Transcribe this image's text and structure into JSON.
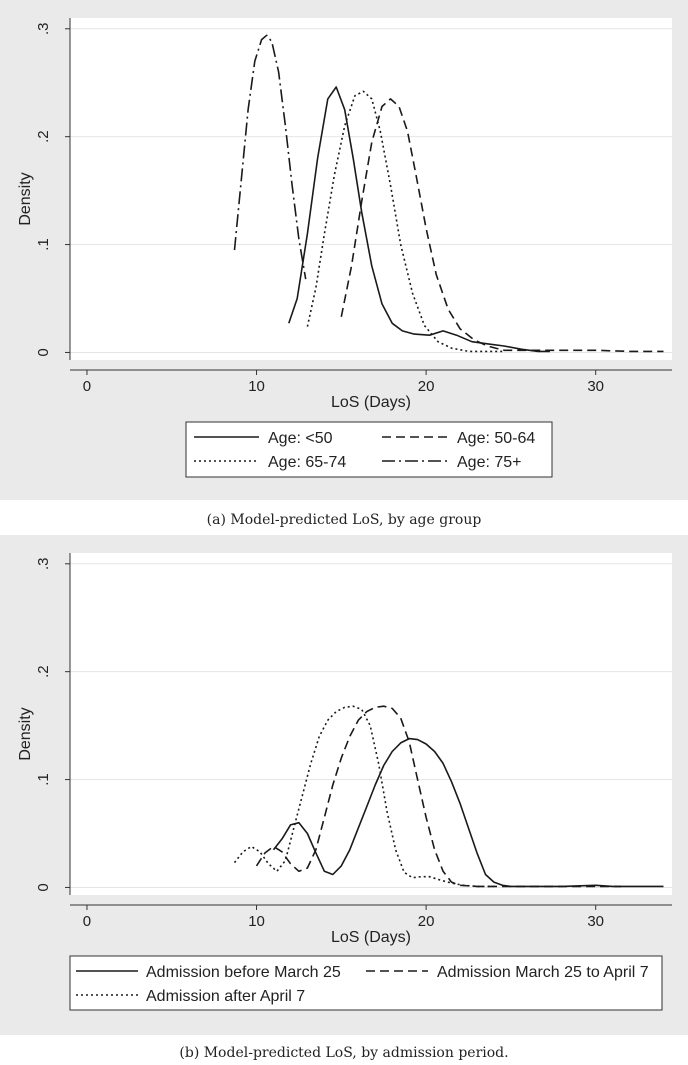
{
  "chart_data": [
    {
      "type": "line",
      "caption": "(a) Model-predicted LoS, by age group",
      "xlabel": "LoS (Days)",
      "ylabel": "Density",
      "xlim": [
        -1,
        34.5
      ],
      "ylim": [
        -0.007,
        0.31
      ],
      "xticks": [
        0,
        10,
        20,
        30
      ],
      "yticks": [
        0,
        0.1,
        0.2,
        0.3
      ],
      "xtick_labels": [
        "0",
        "10",
        "20",
        "30"
      ],
      "ytick_labels": [
        "0",
        ".1",
        ".2",
        ".3"
      ],
      "grid": true,
      "legend_position": "bottom",
      "series": [
        {
          "name": "Age: <50",
          "style": "solid",
          "x": [
            11.9,
            12.4,
            13.0,
            13.6,
            14.2,
            14.7,
            15.2,
            15.7,
            16.2,
            16.8,
            17.4,
            18.0,
            18.6,
            19.3,
            20.2,
            21.0,
            21.8,
            22.7,
            23.6,
            24.6,
            25.6,
            26.6,
            27.3
          ],
          "y": [
            0.027,
            0.05,
            0.11,
            0.18,
            0.235,
            0.246,
            0.225,
            0.18,
            0.13,
            0.08,
            0.045,
            0.027,
            0.02,
            0.017,
            0.016,
            0.02,
            0.016,
            0.01,
            0.008,
            0.006,
            0.003,
            0.001,
            0.001
          ]
        },
        {
          "name": "Age: 50-64",
          "style": "dash",
          "x": [
            15.0,
            15.6,
            16.2,
            16.8,
            17.4,
            17.9,
            18.4,
            18.9,
            19.4,
            20.0,
            20.6,
            21.3,
            22.0,
            22.8,
            23.6,
            24.6,
            26.0,
            28.0,
            30.0,
            32.0,
            34.0
          ],
          "y": [
            0.033,
            0.08,
            0.14,
            0.195,
            0.228,
            0.235,
            0.228,
            0.205,
            0.165,
            0.115,
            0.072,
            0.04,
            0.022,
            0.012,
            0.006,
            0.002,
            0.002,
            0.002,
            0.002,
            0.001,
            0.001
          ]
        },
        {
          "name": "Age: 65-74",
          "style": "dot",
          "x": [
            13.0,
            13.5,
            14.0,
            14.6,
            15.2,
            15.8,
            16.3,
            16.8,
            17.3,
            17.9,
            18.5,
            19.2,
            19.9,
            20.7,
            21.5,
            22.5,
            23.5,
            24.5
          ],
          "y": [
            0.024,
            0.06,
            0.11,
            0.165,
            0.21,
            0.238,
            0.242,
            0.235,
            0.205,
            0.155,
            0.1,
            0.055,
            0.025,
            0.01,
            0.004,
            0.001,
            0.001,
            0.001
          ]
        },
        {
          "name": "Age: 75+",
          "style": "dashdot",
          "x": [
            8.7,
            9.1,
            9.5,
            9.9,
            10.3,
            10.6,
            10.9,
            11.3,
            11.7,
            12.1,
            12.5,
            12.9
          ],
          "y": [
            0.095,
            0.16,
            0.225,
            0.27,
            0.29,
            0.294,
            0.288,
            0.26,
            0.21,
            0.155,
            0.105,
            0.068
          ]
        }
      ]
    },
    {
      "type": "line",
      "caption": "(b) Model-predicted LoS, by admission period.",
      "xlabel": "LoS (Days)",
      "ylabel": "Density",
      "xlim": [
        -1,
        34.5
      ],
      "ylim": [
        -0.007,
        0.31
      ],
      "xticks": [
        0,
        10,
        20,
        30
      ],
      "yticks": [
        0,
        0.1,
        0.2,
        0.3
      ],
      "xtick_labels": [
        "0",
        "10",
        "20",
        "30"
      ],
      "ytick_labels": [
        "0",
        ".1",
        ".2",
        ".3"
      ],
      "grid": true,
      "legend_position": "bottom",
      "series": [
        {
          "name": "Admission before March 25",
          "style": "solid",
          "x": [
            11.0,
            11.5,
            12.0,
            12.5,
            13.0,
            13.5,
            14.0,
            14.5,
            15.0,
            15.5,
            16.0,
            16.5,
            17.0,
            17.5,
            18.0,
            18.5,
            19.0,
            19.5,
            20.0,
            20.5,
            21.0,
            21.5,
            22.0,
            22.5,
            23.0,
            23.5,
            24.0,
            24.5,
            25.0,
            26.0,
            28.0,
            30.0,
            31.0,
            32.0,
            33.0,
            34.0
          ],
          "y": [
            0.035,
            0.045,
            0.058,
            0.06,
            0.05,
            0.032,
            0.015,
            0.012,
            0.02,
            0.035,
            0.055,
            0.075,
            0.095,
            0.113,
            0.126,
            0.134,
            0.138,
            0.137,
            0.133,
            0.126,
            0.115,
            0.098,
            0.078,
            0.055,
            0.032,
            0.012,
            0.005,
            0.002,
            0.001,
            0.001,
            0.001,
            0.002,
            0.001,
            0.001,
            0.001,
            0.001
          ]
        },
        {
          "name": "Admission March 25 to April 7",
          "style": "dash",
          "x": [
            10.0,
            10.5,
            11.0,
            11.5,
            12.0,
            12.5,
            13.0,
            13.5,
            14.0,
            14.5,
            15.0,
            15.5,
            16.0,
            16.5,
            17.0,
            17.5,
            18.0,
            18.5,
            19.0,
            19.5,
            20.0,
            20.5,
            21.0,
            21.5,
            22.0,
            23.0,
            24.0,
            26.0,
            28.0,
            30.0,
            31.5
          ],
          "y": [
            0.02,
            0.032,
            0.038,
            0.033,
            0.022,
            0.015,
            0.018,
            0.035,
            0.065,
            0.095,
            0.12,
            0.14,
            0.155,
            0.163,
            0.167,
            0.168,
            0.166,
            0.157,
            0.135,
            0.1,
            0.065,
            0.035,
            0.015,
            0.005,
            0.002,
            0.001,
            0.001,
            0.001,
            0.001,
            0.001,
            0.001
          ]
        },
        {
          "name": "Admission after April 7",
          "style": "dot",
          "x": [
            8.7,
            9.2,
            9.7,
            10.2,
            10.7,
            11.2,
            11.7,
            12.2,
            12.7,
            13.2,
            13.7,
            14.2,
            14.7,
            15.2,
            15.7,
            16.2,
            16.7,
            17.2,
            17.7,
            18.2,
            18.7,
            19.2,
            19.7,
            20.2,
            20.8,
            21.5,
            22.2,
            23.0,
            24.0
          ],
          "y": [
            0.023,
            0.033,
            0.038,
            0.033,
            0.022,
            0.015,
            0.025,
            0.055,
            0.085,
            0.115,
            0.14,
            0.155,
            0.163,
            0.167,
            0.168,
            0.165,
            0.15,
            0.115,
            0.07,
            0.035,
            0.014,
            0.009,
            0.01,
            0.01,
            0.007,
            0.004,
            0.002,
            0.001,
            0.001
          ]
        }
      ]
    }
  ]
}
